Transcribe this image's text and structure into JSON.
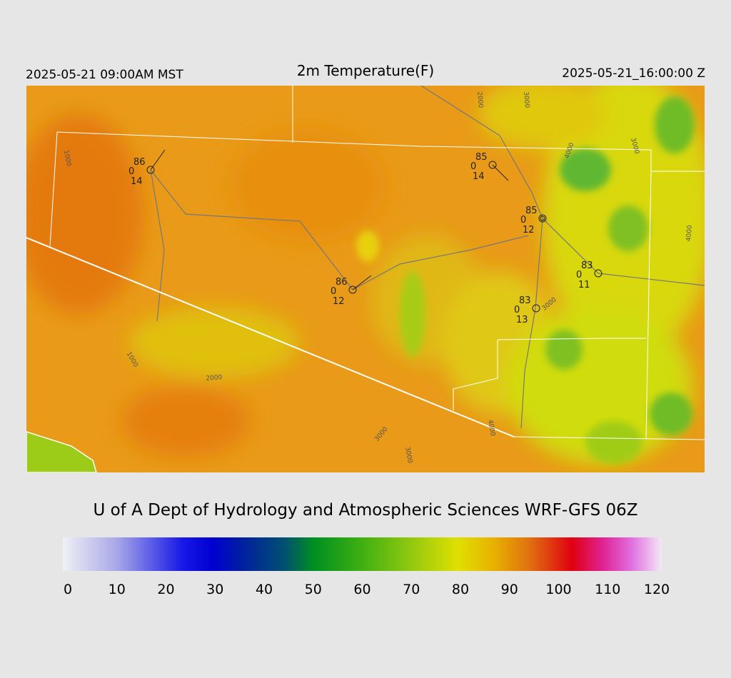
{
  "header": {
    "left": "2025-05-21 09:00AM MST",
    "title": "2m Temperature(F)",
    "right": "2025-05-21_16:00:00 Z"
  },
  "stations": [
    {
      "temp": 86,
      "left": 0,
      "bottom": 14
    },
    {
      "temp": 85,
      "left": 0,
      "bottom": 14
    },
    {
      "temp": 85,
      "left": 0,
      "bottom": 12
    },
    {
      "temp": 83,
      "left": 0,
      "bottom": 11
    },
    {
      "temp": 86,
      "left": 0,
      "bottom": 12
    },
    {
      "temp": 83,
      "left": 0,
      "bottom": 13
    }
  ],
  "contour_labels": [
    2000,
    3000,
    1000,
    4000,
    3000,
    4000,
    3000,
    1000,
    2000,
    3000,
    4000,
    3000
  ],
  "credit": "U of A Dept of Hydrology and Atmospheric Sciences WRF-GFS 06Z",
  "colorbar": {
    "range": [
      0,
      120
    ],
    "ticks": [
      0,
      10,
      20,
      30,
      40,
      50,
      60,
      70,
      80,
      90,
      100,
      110,
      120
    ]
  }
}
